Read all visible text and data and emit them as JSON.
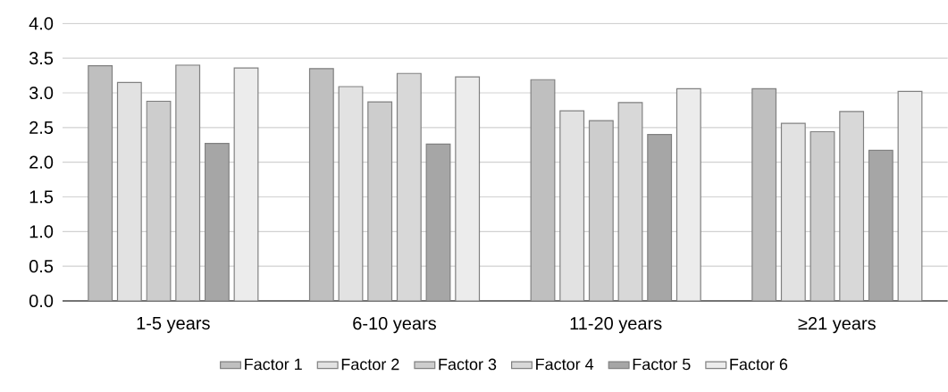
{
  "chart_data": {
    "type": "bar",
    "categories": [
      "1-5 years",
      "6-10 years",
      "11-20 years",
      "≥21 years"
    ],
    "series": [
      {
        "name": "Factor 1",
        "color": "#bfbfbf",
        "values": [
          3.39,
          3.35,
          3.19,
          3.06
        ]
      },
      {
        "name": "Factor 2",
        "color": "#e2e2e2",
        "values": [
          3.15,
          3.09,
          2.74,
          2.56
        ]
      },
      {
        "name": "Factor 3",
        "color": "#cdcdcd",
        "values": [
          2.88,
          2.87,
          2.6,
          2.44
        ]
      },
      {
        "name": "Factor 4",
        "color": "#d8d8d8",
        "values": [
          3.4,
          3.28,
          2.86,
          2.73
        ]
      },
      {
        "name": "Factor 5",
        "color": "#a6a6a6",
        "values": [
          2.27,
          2.26,
          2.4,
          2.17
        ]
      },
      {
        "name": "Factor 6",
        "color": "#ececec",
        "values": [
          3.36,
          3.23,
          3.06,
          3.02
        ]
      }
    ],
    "ylim": [
      0,
      4
    ],
    "yticks": [
      {
        "value": 0,
        "label": "0.0"
      },
      {
        "value": 0.5,
        "label": "0.5"
      },
      {
        "value": 1,
        "label": "1.0"
      },
      {
        "value": 1.5,
        "label": "1.5"
      },
      {
        "value": 2,
        "label": "2.0"
      },
      {
        "value": 2.5,
        "label": "2.5"
      },
      {
        "value": 3,
        "label": "3.0"
      },
      {
        "value": 3.5,
        "label": "3.5"
      },
      {
        "value": 4,
        "label": "4.0"
      }
    ],
    "grid": "y",
    "legend": "bottom"
  }
}
